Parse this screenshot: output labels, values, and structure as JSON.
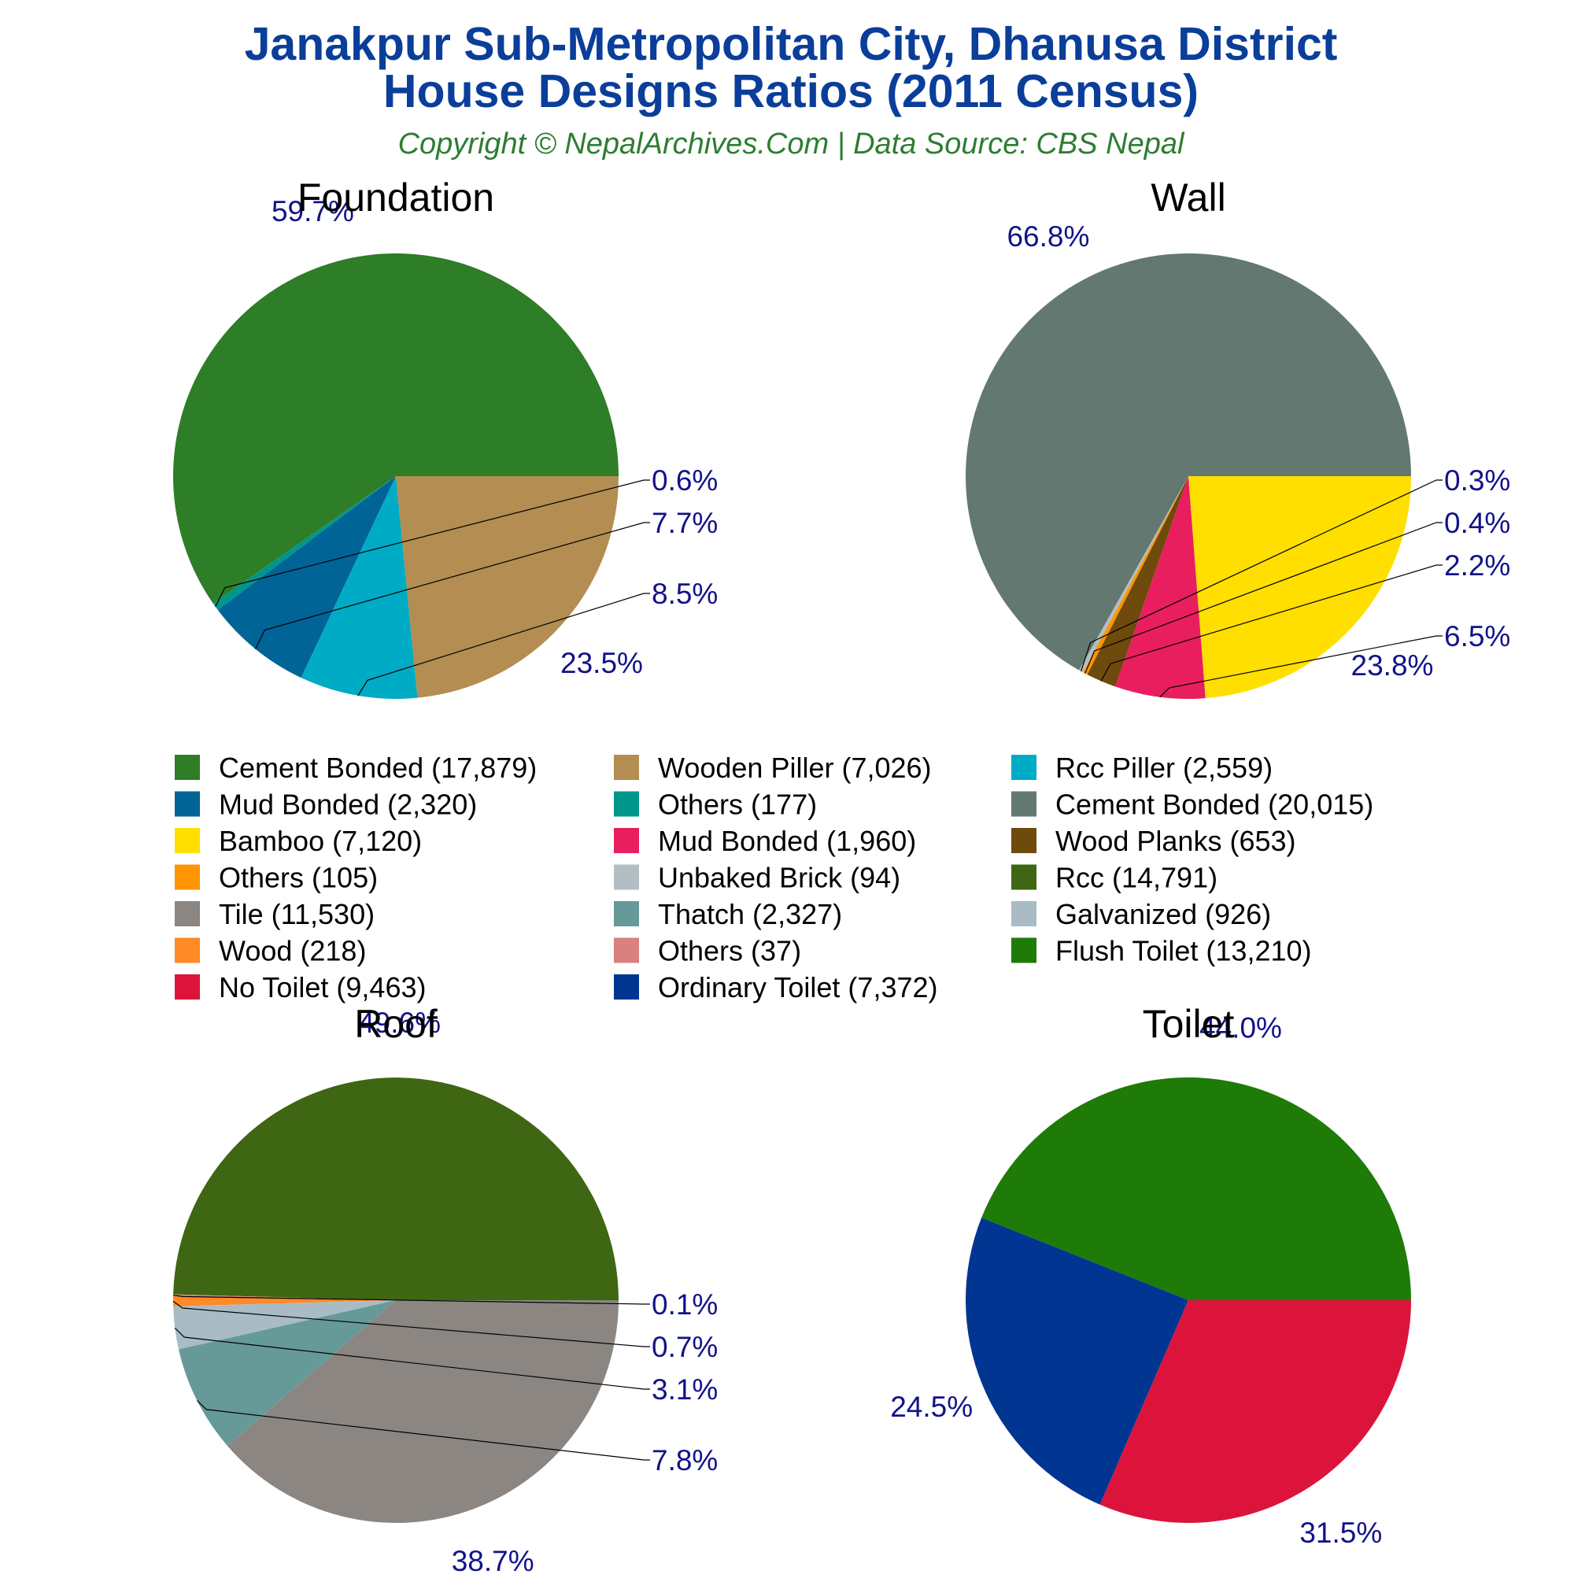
{
  "title_line1": "Janakpur Sub-Metropolitan City, Dhanusa District",
  "title_line2": "House Designs Ratios (2011 Census)",
  "subtitle": "Copyright © NepalArchives.Com | Data Source: CBS Nepal",
  "colors": {
    "title": "#0a3e9a",
    "subtitle": "#2e7d32",
    "percent_label": "#12128a",
    "chart_title": "#000000"
  },
  "chart_data": [
    {
      "type": "pie",
      "title": "Foundation",
      "slices": [
        {
          "label": "Cement Bonded",
          "value": 17879,
          "percent": "59.7%",
          "color": "#2e7d27"
        },
        {
          "label": "Others",
          "value": 177,
          "percent": "0.6%",
          "color": "#00968a"
        },
        {
          "label": "Mud Bonded",
          "value": 2320,
          "percent": "7.7%",
          "color": "#006496"
        },
        {
          "label": "Rcc Piller",
          "value": 2559,
          "percent": "8.5%",
          "color": "#00abc5"
        },
        {
          "label": "Wooden Piller",
          "value": 7026,
          "percent": "23.5%",
          "color": "#b38d51"
        }
      ]
    },
    {
      "type": "pie",
      "title": "Wall",
      "slices": [
        {
          "label": "Cement Bonded",
          "value": 20015,
          "percent": "66.8%",
          "color": "#637870"
        },
        {
          "label": "Unbaked Brick",
          "value": 94,
          "percent": "0.3%",
          "color": "#b2bec3"
        },
        {
          "label": "Others",
          "value": 105,
          "percent": "0.4%",
          "color": "#ff9500"
        },
        {
          "label": "Wood Planks",
          "value": 653,
          "percent": "2.2%",
          "color": "#6e4a0c"
        },
        {
          "label": "Mud Bonded",
          "value": 1960,
          "percent": "6.5%",
          "color": "#e91e5f"
        },
        {
          "label": "Bamboo",
          "value": 7120,
          "percent": "23.8%",
          "color": "#ffdf00"
        }
      ]
    },
    {
      "type": "pie",
      "title": "Roof",
      "slices": [
        {
          "label": "Rcc",
          "value": 14791,
          "percent": "49.6%",
          "color": "#3f6612"
        },
        {
          "label": "Others",
          "value": 37,
          "percent": "0.1%",
          "color": "#d98080"
        },
        {
          "label": "Wood",
          "value": 218,
          "percent": "0.7%",
          "color": "#ff8a26"
        },
        {
          "label": "Galvanized",
          "value": 926,
          "percent": "3.1%",
          "color": "#a9bcc5"
        },
        {
          "label": "Thatch",
          "value": 2327,
          "percent": "7.8%",
          "color": "#669a99"
        },
        {
          "label": "Tile",
          "value": 11530,
          "percent": "38.7%",
          "color": "#8b8681"
        }
      ]
    },
    {
      "type": "pie",
      "title": "Toilet",
      "slices": [
        {
          "label": "Flush Toilet",
          "value": 13210,
          "percent": "44.0%",
          "color": "#1e7b07"
        },
        {
          "label": "Ordinary Toilet",
          "value": 7372,
          "percent": "24.5%",
          "color": "#003591"
        },
        {
          "label": "No Toilet",
          "value": 9463,
          "percent": "31.5%",
          "color": "#dc143c"
        }
      ]
    }
  ],
  "legend": [
    {
      "text": "Cement Bonded (17,879)",
      "color": "#2e7d27"
    },
    {
      "text": "Wooden Piller (7,026)",
      "color": "#b38d51"
    },
    {
      "text": "Rcc Piller (2,559)",
      "color": "#00abc5"
    },
    {
      "text": "Mud Bonded (2,320)",
      "color": "#006496"
    },
    {
      "text": "Others (177)",
      "color": "#00968a"
    },
    {
      "text": "Cement Bonded (20,015)",
      "color": "#637870"
    },
    {
      "text": "Bamboo (7,120)",
      "color": "#ffdf00"
    },
    {
      "text": "Mud Bonded (1,960)",
      "color": "#e91e5f"
    },
    {
      "text": "Wood Planks (653)",
      "color": "#6e4a0c"
    },
    {
      "text": "Others (105)",
      "color": "#ff9500"
    },
    {
      "text": "Unbaked Brick (94)",
      "color": "#b2bec3"
    },
    {
      "text": "Rcc (14,791)",
      "color": "#3f6612"
    },
    {
      "text": "Tile (11,530)",
      "color": "#8b8681"
    },
    {
      "text": "Thatch (2,327)",
      "color": "#669a99"
    },
    {
      "text": "Galvanized (926)",
      "color": "#a9bcc5"
    },
    {
      "text": "Wood (218)",
      "color": "#ff8a26"
    },
    {
      "text": "Others (37)",
      "color": "#d98080"
    },
    {
      "text": "Flush Toilet (13,210)",
      "color": "#1e7b07"
    },
    {
      "text": "No Toilet (9,463)",
      "color": "#dc143c"
    },
    {
      "text": "Ordinary Toilet (7,372)",
      "color": "#003591"
    }
  ]
}
